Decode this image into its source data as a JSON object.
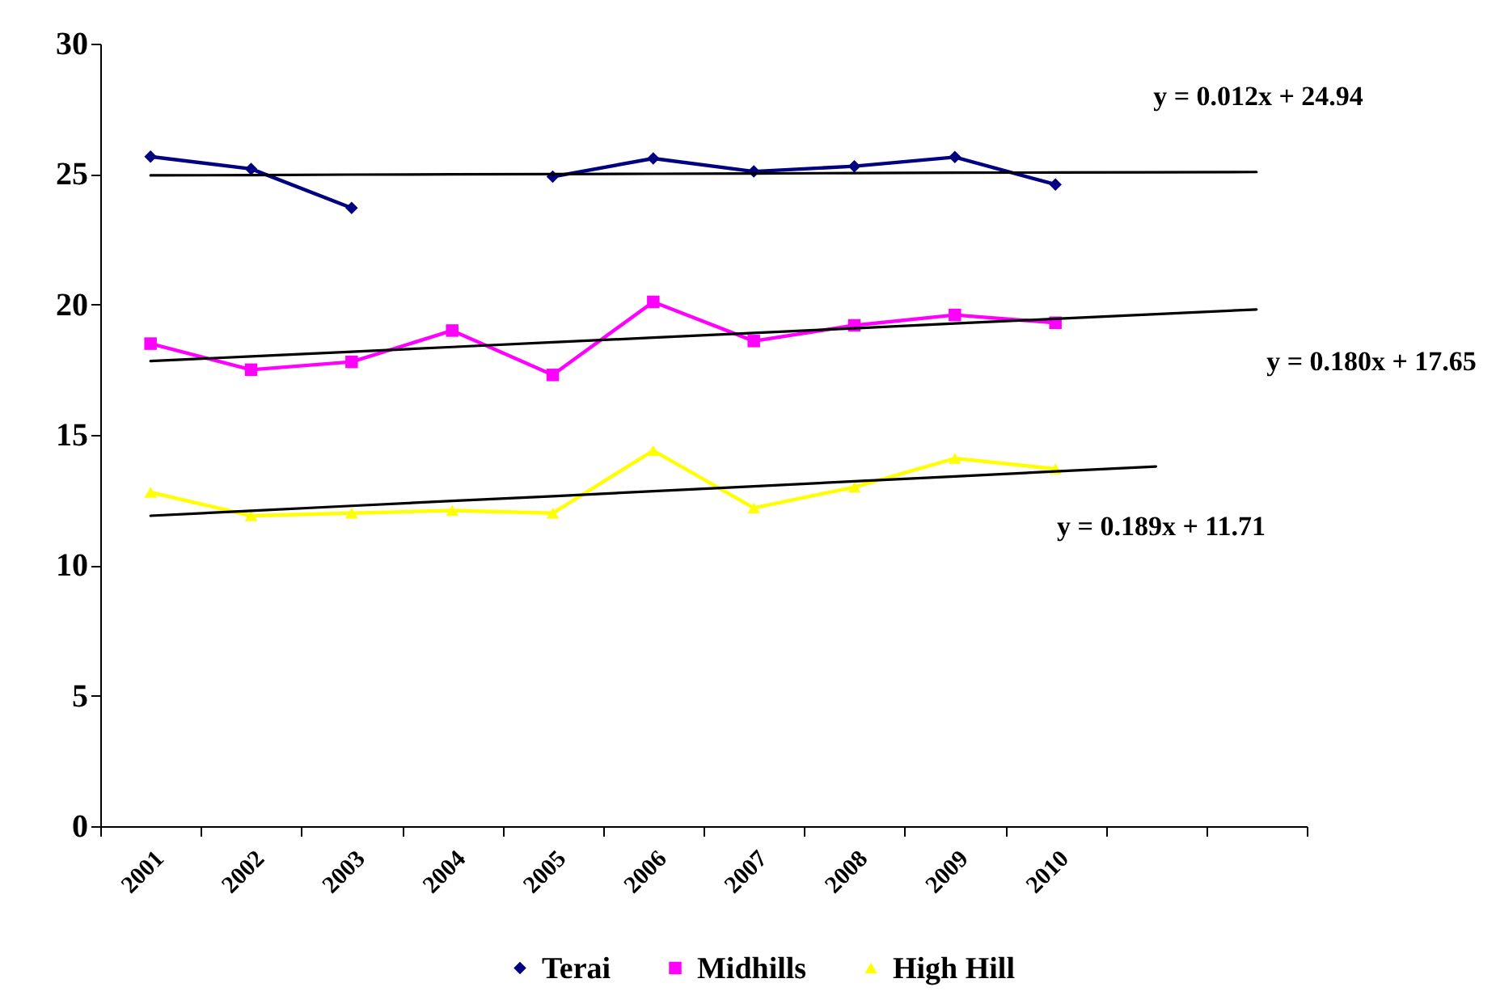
{
  "chart_data": {
    "type": "line",
    "categories": [
      "2001",
      "2002",
      "2003",
      "2004",
      "2005",
      "2006",
      "2007",
      "2008",
      "2009",
      "2010",
      null,
      null
    ],
    "series": [
      {
        "name": "Terai",
        "color": "#000080",
        "marker": "diamond",
        "values": [
          25.67,
          25.2,
          23.7,
          null,
          24.9,
          25.6,
          25.1,
          25.3,
          25.65,
          24.6,
          null,
          null
        ]
      },
      {
        "name": "Midhills",
        "color": "#ff00ff",
        "marker": "square",
        "values": [
          18.5,
          17.5,
          17.8,
          19.0,
          17.3,
          20.1,
          18.6,
          19.2,
          19.6,
          19.3,
          null,
          null
        ]
      },
      {
        "name": "High Hill",
        "color": "#ffff00",
        "marker": "triangle",
        "values": [
          12.8,
          11.9,
          12.0,
          12.1,
          12.0,
          14.4,
          12.2,
          13.0,
          14.1,
          13.7,
          null,
          null
        ]
      },
      {
        "color": "#000000",
        "marker": "none",
        "values": [
          24.95,
          24.96,
          24.98,
          24.99,
          25.0,
          25.01,
          25.02,
          25.04,
          25.05,
          25.06,
          25.07,
          25.08
        ]
      },
      {
        "color": "#000000",
        "marker": "none",
        "values": [
          17.83,
          18.01,
          18.19,
          18.37,
          18.55,
          18.73,
          18.91,
          19.09,
          19.27,
          19.45,
          19.63,
          19.81
        ]
      },
      {
        "color": "#000000",
        "marker": "none",
        "values": [
          11.9,
          12.09,
          12.28,
          12.47,
          12.65,
          12.84,
          13.03,
          13.22,
          13.41,
          13.6,
          13.79,
          null
        ]
      }
    ],
    "annotations": [
      "y = 0.012x + 24.94",
      "y = 0.180x + 17.65",
      "y = 0.189x + 11.71"
    ],
    "ylim": [
      0,
      30
    ],
    "yticks": [
      0,
      5,
      10,
      15,
      20,
      25,
      30
    ],
    "grid": false,
    "legend": "bottom"
  }
}
